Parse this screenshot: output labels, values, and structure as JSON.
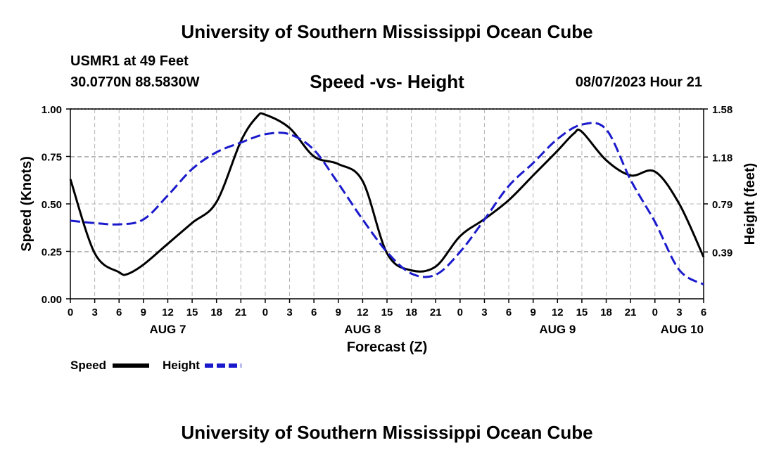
{
  "header": {
    "main_title": "University of Southern Mississippi Ocean Cube",
    "station": "USMR1 at 49 Feet",
    "coordinates": "30.0770N  88.5830W",
    "chart_title": "Speed -vs- Height",
    "datetime": "08/07/2023 Hour 21"
  },
  "footer": {
    "main_title": "University of Southern Mississippi Ocean Cube"
  },
  "colors": {
    "speed": "#000000",
    "height": "#1a1acc",
    "grid": "#b4b4b4"
  },
  "chart_data": {
    "type": "line",
    "title": "Speed -vs- Height",
    "xlabel": "Forecast (Z)",
    "ylabel": "Speed (Knots)",
    "y2label": "Height (feet)",
    "xlim": [
      0,
      78
    ],
    "ylim": [
      0,
      1.0
    ],
    "y2lim": [
      0,
      1.58
    ],
    "x_unit": "hours since AUG 7 00Z",
    "x_ticks": [
      0,
      3,
      6,
      9,
      12,
      15,
      18,
      21,
      24,
      27,
      30,
      33,
      36,
      39,
      42,
      45,
      48,
      51,
      54,
      57,
      60,
      63,
      66,
      69,
      72,
      75,
      78
    ],
    "x_tick_labels": [
      "0",
      "3",
      "6",
      "9",
      "12",
      "15",
      "18",
      "21",
      "0",
      "3",
      "6",
      "9",
      "12",
      "15",
      "18",
      "21",
      "0",
      "3",
      "6",
      "9",
      "12",
      "15",
      "18",
      "21",
      "0",
      "3",
      "6"
    ],
    "date_labels": [
      {
        "label": "AUG 7",
        "x": 12
      },
      {
        "label": "AUG 8",
        "x": 36
      },
      {
        "label": "AUG 9",
        "x": 60
      },
      {
        "label": "AUG 10",
        "x": 78
      }
    ],
    "y_ticks": [
      0,
      0.25,
      0.5,
      0.75,
      1.0
    ],
    "y_tick_labels": [
      "0.00",
      "0.25",
      "0.50",
      "0.75",
      "1.00"
    ],
    "y2_ticks": [
      0.39,
      0.79,
      1.18,
      1.58
    ],
    "y2_tick_labels": [
      "0.39",
      "0.79",
      "1.18",
      "1.58"
    ],
    "legend": [
      {
        "name": "Speed",
        "style": "solid"
      },
      {
        "name": "Height",
        "style": "dashed"
      }
    ],
    "series": [
      {
        "name": "Speed",
        "axis": "left",
        "x": [
          0,
          3,
          6,
          7,
          9,
          12,
          15,
          18,
          21,
          23,
          24,
          27,
          30,
          33,
          36,
          39,
          42,
          45,
          48,
          51,
          54,
          57,
          60,
          62,
          63,
          66,
          69,
          72,
          75,
          78
        ],
        "values": [
          0.63,
          0.24,
          0.14,
          0.13,
          0.18,
          0.29,
          0.4,
          0.51,
          0.83,
          0.96,
          0.97,
          0.9,
          0.75,
          0.71,
          0.62,
          0.24,
          0.15,
          0.17,
          0.33,
          0.42,
          0.52,
          0.65,
          0.78,
          0.87,
          0.88,
          0.73,
          0.65,
          0.67,
          0.5,
          0.22
        ]
      },
      {
        "name": "Height",
        "axis": "right",
        "x": [
          0,
          3,
          6,
          9,
          12,
          15,
          18,
          21,
          24,
          27,
          30,
          33,
          36,
          39,
          42,
          45,
          48,
          51,
          54,
          57,
          60,
          63,
          66,
          69,
          72,
          75,
          78
        ],
        "values": [
          0.65,
          0.63,
          0.62,
          0.66,
          0.86,
          1.08,
          1.22,
          1.3,
          1.37,
          1.37,
          1.24,
          0.96,
          0.66,
          0.39,
          0.21,
          0.2,
          0.39,
          0.66,
          0.94,
          1.13,
          1.33,
          1.45,
          1.41,
          0.99,
          0.64,
          0.24,
          0.12
        ]
      }
    ]
  }
}
